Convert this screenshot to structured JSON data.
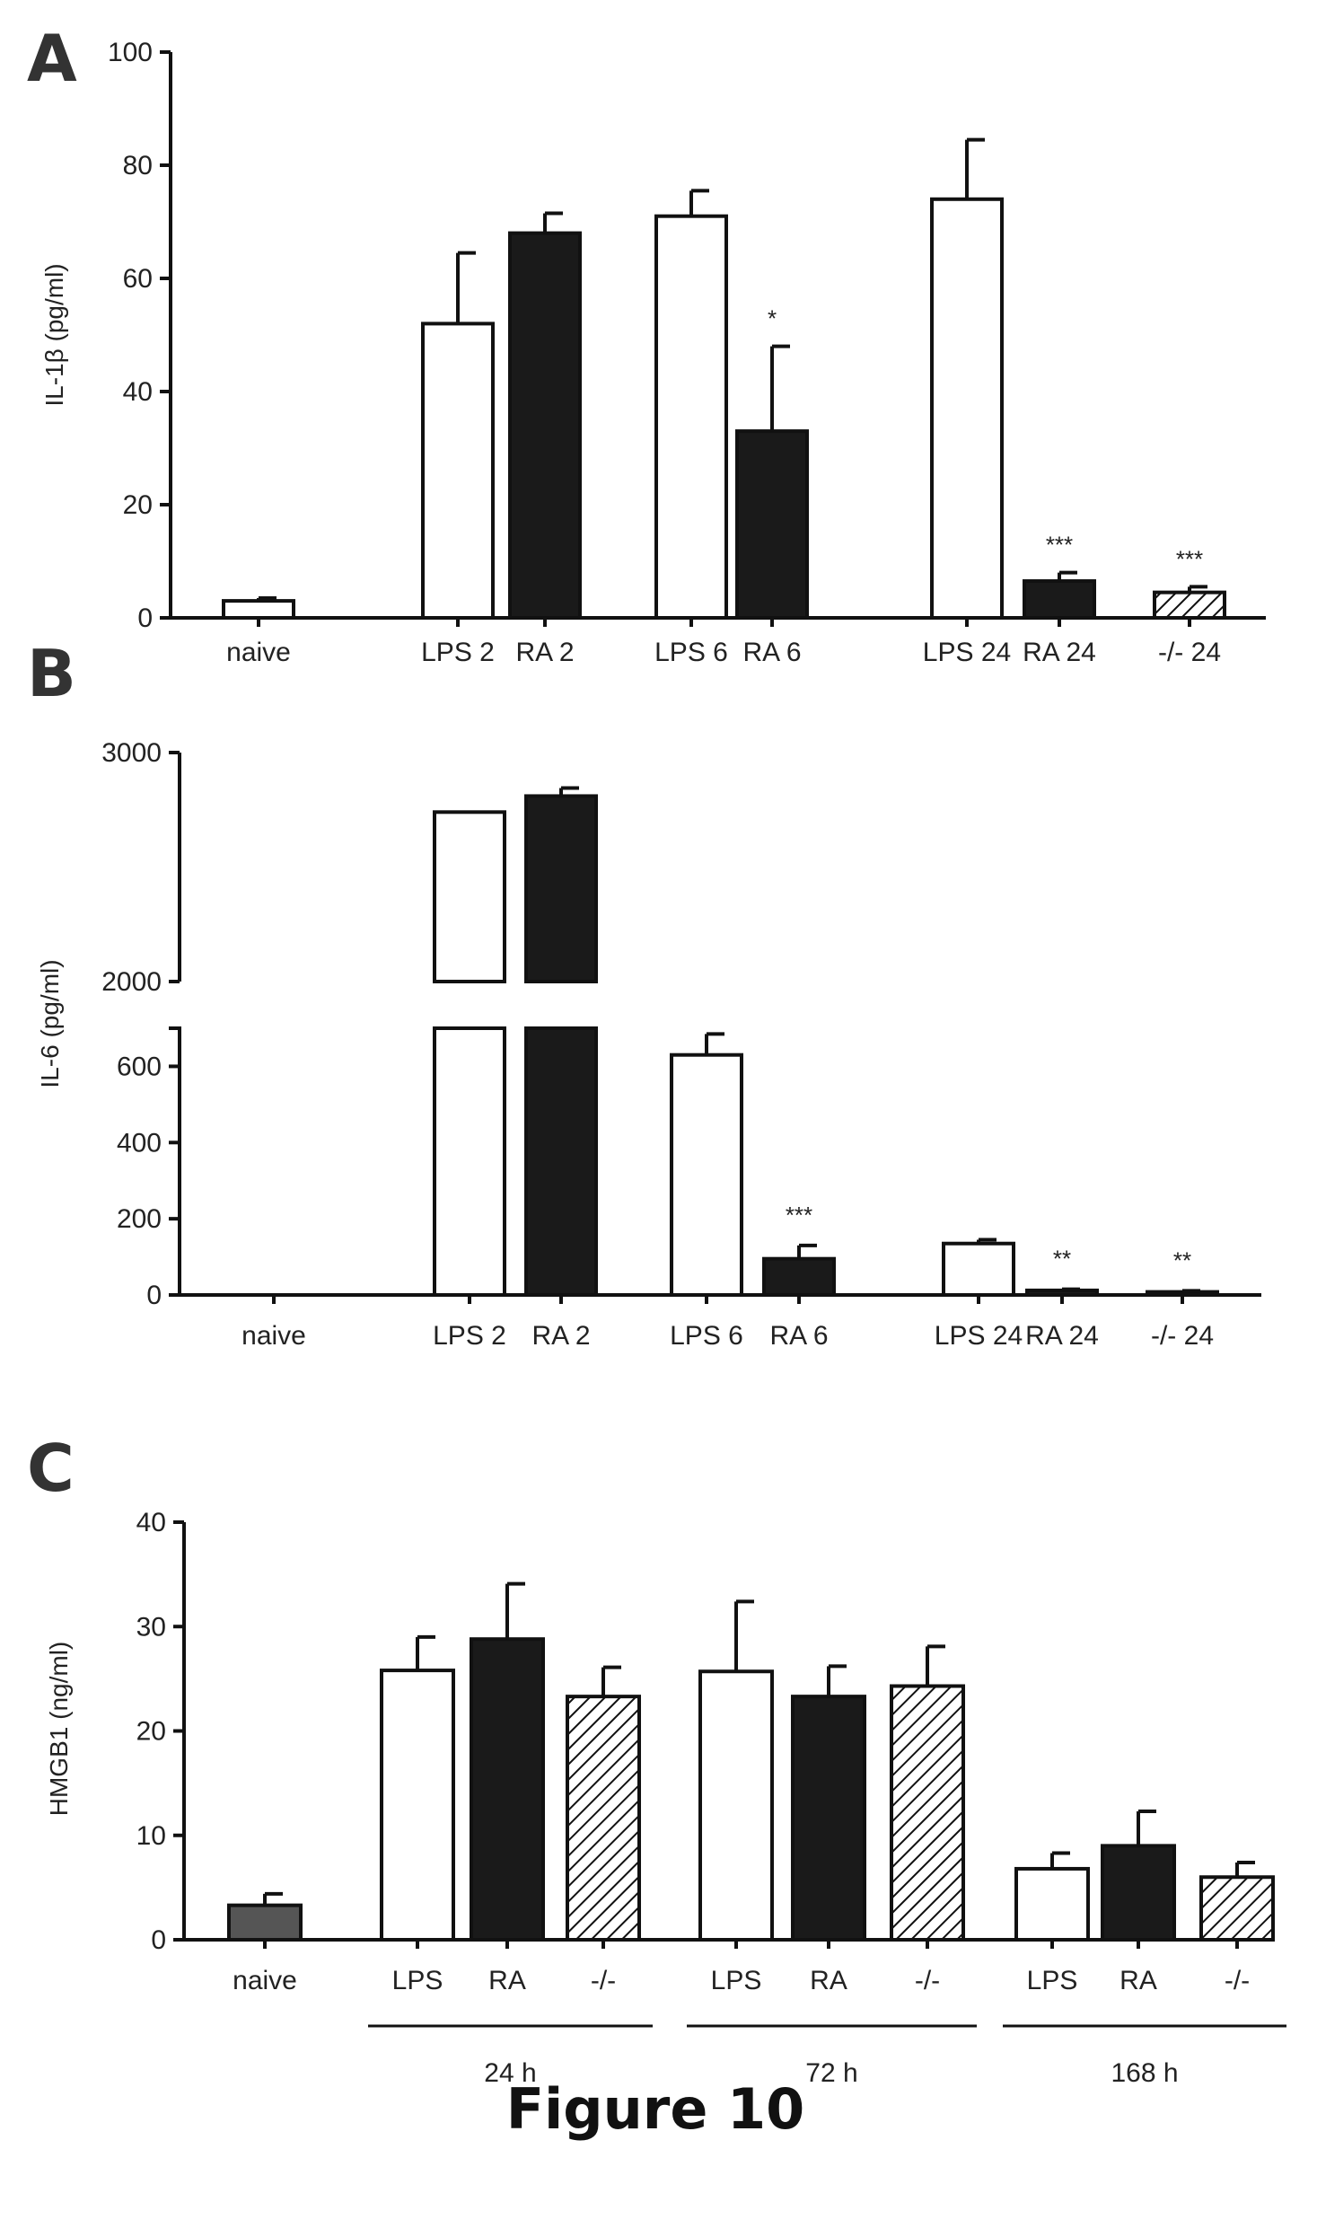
{
  "figure_caption": "Figure 10",
  "panels": {
    "A": {
      "letter": "A"
    },
    "B": {
      "letter": "B"
    },
    "C": {
      "letter": "C"
    }
  },
  "colors": {
    "open": "#ffffff",
    "filled": "#1a1a1a",
    "hatched": "#ffffff",
    "naive_C": "#555555",
    "stroke": "#111111"
  },
  "chart_data": [
    {
      "panel": "A",
      "type": "bar",
      "ylabel": "IL-1β (pg/ml)",
      "ylim": [
        0,
        100
      ],
      "yticks": [
        0,
        20,
        40,
        60,
        80,
        100
      ],
      "categories": [
        "naive",
        "LPS 2",
        "RA 2",
        "LPS 6",
        "RA 6",
        "LPS 24",
        "RA 24",
        "-/- 24"
      ],
      "values": [
        3,
        52,
        68,
        71,
        33,
        74,
        6.5,
        4.5
      ],
      "errors": [
        0.5,
        12.5,
        3.5,
        4.5,
        15,
        10.5,
        1.5,
        1
      ],
      "fills": [
        "open",
        "open",
        "filled",
        "open",
        "filled",
        "open",
        "filled",
        "hatched"
      ],
      "significance": [
        "",
        "",
        "",
        "",
        "*",
        "",
        "***",
        "***"
      ]
    },
    {
      "panel": "B",
      "type": "bar",
      "ylabel": "IL-6 (pg/ml)",
      "axis_break": {
        "lower": [
          0,
          700
        ],
        "upper": [
          2000,
          3000
        ]
      },
      "yticks_lower": [
        0,
        200,
        400,
        600
      ],
      "yticks_upper": [
        2000,
        3000
      ],
      "categories": [
        "naive",
        "LPS 2",
        "RA 2",
        "LPS 6",
        "RA 6",
        "LPS 24",
        "RA 24",
        "-/- 24"
      ],
      "values": [
        0,
        2740,
        2810,
        630,
        95,
        135,
        12,
        8
      ],
      "errors": [
        0,
        0,
        35,
        55,
        35,
        10,
        3,
        3
      ],
      "fills": [
        "open",
        "open",
        "filled",
        "open",
        "filled",
        "open",
        "filled",
        "hatched"
      ],
      "significance": [
        "",
        "",
        "",
        "",
        "***",
        "",
        "**",
        "**"
      ]
    },
    {
      "panel": "C",
      "type": "bar",
      "ylabel": "HMGB1 (ng/ml)",
      "ylim": [
        0,
        40
      ],
      "yticks": [
        0,
        10,
        20,
        30,
        40
      ],
      "categories": [
        "naive",
        "LPS",
        "RA",
        "-/-",
        "LPS",
        "RA",
        "-/-",
        "LPS",
        "RA",
        "-/-"
      ],
      "groups": [
        {
          "label": "24 h",
          "from": 1,
          "to": 3
        },
        {
          "label": "72 h",
          "from": 4,
          "to": 6
        },
        {
          "label": "168 h",
          "from": 7,
          "to": 9
        }
      ],
      "values": [
        3.3,
        25.8,
        28.8,
        23.3,
        25.7,
        23.3,
        24.3,
        6.8,
        9,
        6
      ],
      "errors": [
        1.1,
        3.2,
        5.3,
        2.8,
        6.7,
        2.9,
        3.8,
        1.5,
        3.3,
        1.4
      ],
      "fills": [
        "naive_C",
        "open",
        "filled",
        "hatched",
        "open",
        "filled",
        "hatched",
        "open",
        "filled",
        "hatched"
      ]
    }
  ]
}
